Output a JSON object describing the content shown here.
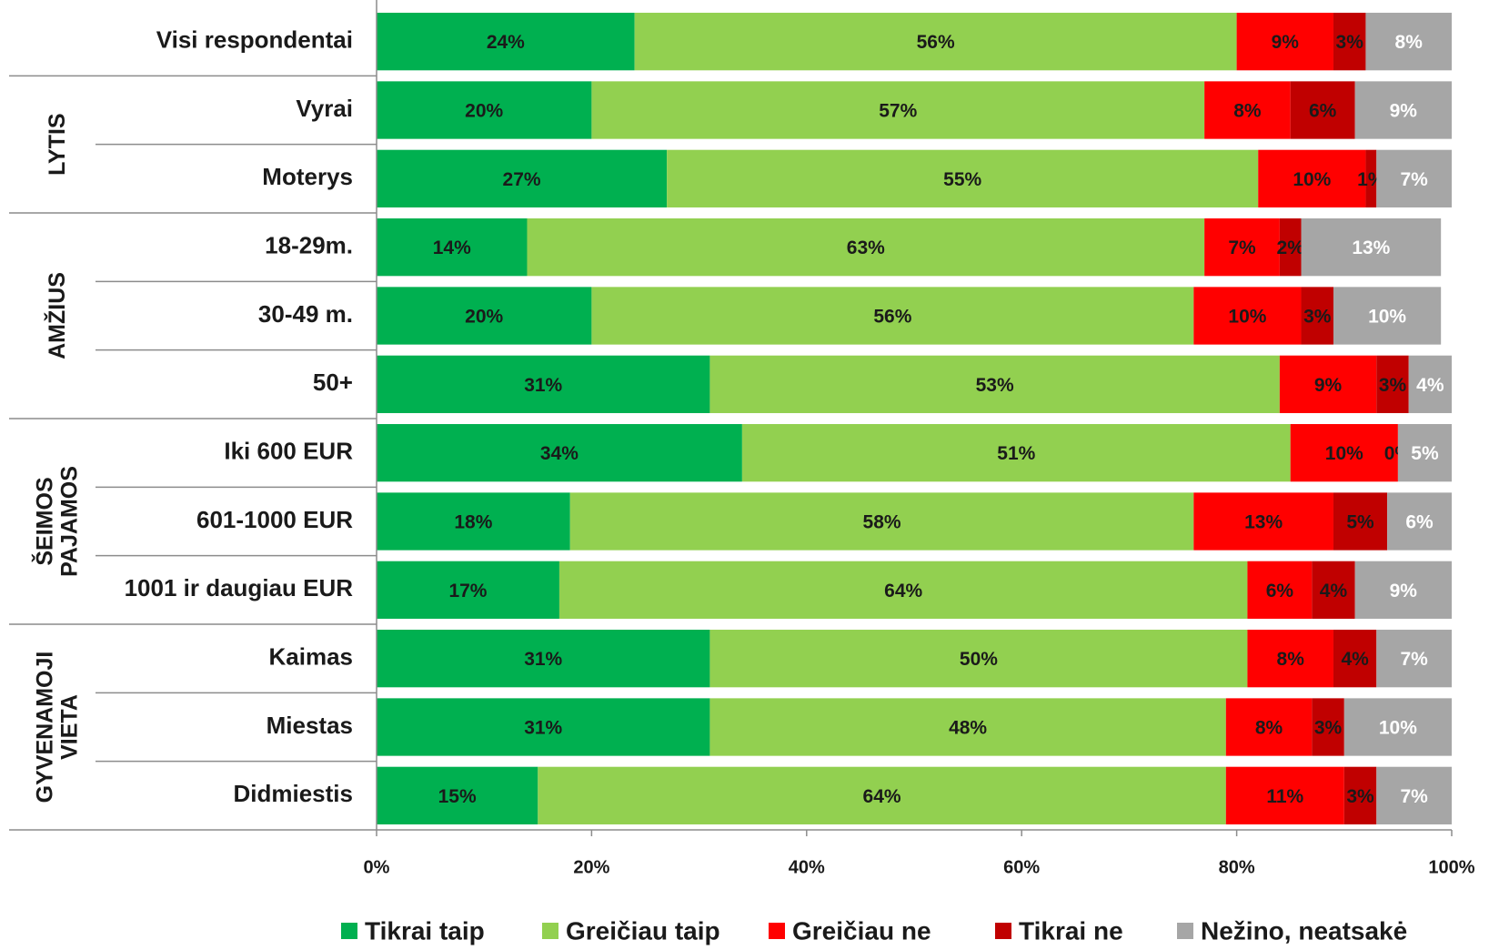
{
  "chart_data": {
    "type": "stacked_bar",
    "orientation": "horizontal",
    "categories": [
      "Visi respondentai",
      "Vyrai",
      "Moterys",
      "18-29m.",
      "30-49 m.",
      "50+",
      "Iki 600 EUR",
      "601-1000 EUR",
      "1001 ir daugiau EUR",
      "Kaimas",
      "Miestas",
      "Didmiestis"
    ],
    "groups": [
      [
        "LYTIS"
      ],
      [
        "AMŽIUS"
      ],
      [
        "ŠEIMOS",
        "PAJAMOS"
      ],
      [
        "GYVENAMOJI",
        "VIETA"
      ]
    ],
    "series": [
      {
        "name": "Tikrai taip",
        "color": "#00b050",
        "values": [
          24,
          20,
          27,
          14,
          20,
          31,
          34,
          18,
          17,
          31,
          31,
          15
        ],
        "value_labels": [
          "24%",
          "20%",
          "27%",
          "14%",
          "20%",
          "31%",
          "34%",
          "18%",
          "17%",
          "31%",
          "31%",
          "15%"
        ]
      },
      {
        "name": "Greičiau taip",
        "color": "#92d050",
        "values": [
          56,
          57,
          55,
          63,
          56,
          53,
          51,
          58,
          64,
          50,
          48,
          64
        ],
        "value_labels": [
          "56%",
          "57%",
          "55%",
          "63%",
          "56%",
          "53%",
          "51%",
          "58%",
          "64%",
          "50%",
          "48%",
          "64%"
        ]
      },
      {
        "name": "Greičiau ne",
        "color": "#ff0000",
        "values": [
          9,
          8,
          10,
          7,
          10,
          9,
          10,
          13,
          6,
          8,
          8,
          11
        ],
        "value_labels": [
          "9%",
          "8%",
          "10%",
          "7%",
          "10%",
          "9%",
          "10%",
          "13%",
          "6%",
          "8%",
          "8%",
          "11%"
        ]
      },
      {
        "name": "Tikrai ne",
        "color": "#c00000",
        "values": [
          3,
          6,
          1,
          2,
          3,
          3,
          0,
          5,
          4,
          4,
          3,
          3
        ],
        "value_labels": [
          "3%",
          "6%",
          "1%",
          "2%",
          "3%",
          "3%",
          "0%",
          "5%",
          "4%",
          "4%",
          "3%",
          "3%"
        ]
      },
      {
        "name": "Nežino, neatsakė",
        "color": "#a6a6a6",
        "values": [
          8,
          9,
          7,
          13,
          10,
          4,
          5,
          6,
          9,
          7,
          10,
          7
        ],
        "value_labels": [
          "8%",
          "9%",
          "7%",
          "13%",
          "10%",
          "4%",
          "5%",
          "6%",
          "9%",
          "7%",
          "10%",
          "7%"
        ]
      }
    ],
    "xlim": [
      0,
      100
    ],
    "xticks": [
      {
        "value": 0,
        "label": "0%"
      },
      {
        "value": 20,
        "label": "20%"
      },
      {
        "value": 40,
        "label": "40%"
      },
      {
        "value": 60,
        "label": "60%"
      },
      {
        "value": 80,
        "label": "80%"
      },
      {
        "value": 100,
        "label": "100%"
      }
    ],
    "legend": "bottom"
  }
}
